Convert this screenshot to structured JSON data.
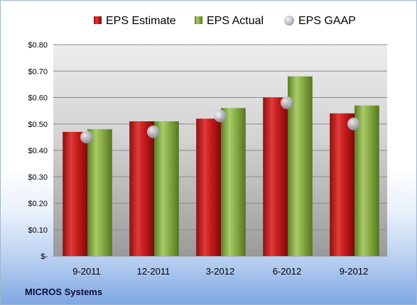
{
  "company": "MICROS Systems",
  "colors": {
    "estimate": "#cc1f1f",
    "actual": "#8db34a",
    "gaap": "#c0c4cc",
    "plot_bg_top": "#ececec",
    "plot_bg_bottom": "#999999"
  },
  "chart_data": {
    "type": "bar",
    "categories": [
      "9-2011",
      "12-2011",
      "3-2012",
      "6-2012",
      "9-2012"
    ],
    "series": [
      {
        "name": "EPS Estimate",
        "values": [
          0.47,
          0.51,
          0.52,
          0.6,
          0.54
        ]
      },
      {
        "name": "EPS Actual",
        "values": [
          0.48,
          0.51,
          0.56,
          0.68,
          0.57
        ]
      },
      {
        "name": "EPS GAAP",
        "values": [
          0.45,
          0.47,
          0.53,
          0.58,
          0.5
        ],
        "marker": "circle"
      }
    ],
    "ylim": [
      0,
      0.8
    ],
    "yticks": [
      "$-",
      "$0.10",
      "$0.20",
      "$0.30",
      "$0.40",
      "$0.50",
      "$0.60",
      "$0.70",
      "$0.80"
    ],
    "grid": true,
    "legend": "top"
  }
}
